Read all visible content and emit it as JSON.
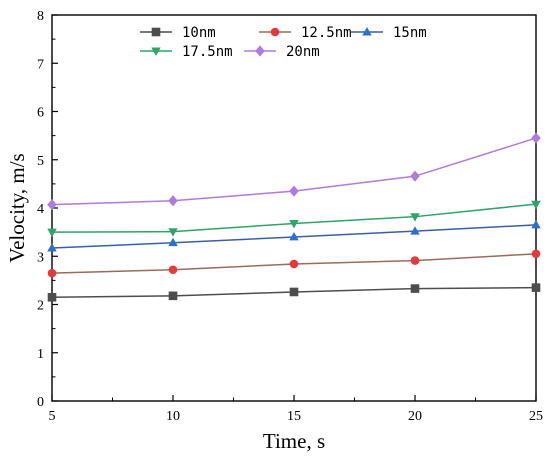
{
  "chart_data": {
    "type": "line",
    "title": "",
    "xlabel": "Time, s",
    "ylabel": "Velocity, m/s",
    "x": [
      5,
      10,
      15,
      20,
      25
    ],
    "xlim": [
      5,
      25
    ],
    "ylim": [
      0,
      8
    ],
    "xticks": [
      "5",
      "10",
      "15",
      "20",
      "25"
    ],
    "yticks": [
      "0",
      "1",
      "2",
      "3",
      "4",
      "5",
      "6",
      "7",
      "8"
    ],
    "grid": false,
    "legend_position": "top",
    "series": [
      {
        "name": "10nm",
        "marker": "square",
        "color": "#4d4d4d",
        "values": [
          2.15,
          2.18,
          2.26,
          2.33,
          2.35
        ]
      },
      {
        "name": "12.5nm",
        "marker": "circle",
        "color": "#e8393a",
        "line_color": "#9c6b5a",
        "values": [
          2.65,
          2.72,
          2.84,
          2.91,
          3.05
        ]
      },
      {
        "name": "15nm",
        "marker": "triangle-up",
        "color": "#2c6fd1",
        "line_color": "#3a5fa8",
        "values": [
          3.17,
          3.28,
          3.4,
          3.52,
          3.65
        ]
      },
      {
        "name": "17.5nm",
        "marker": "triangle-down",
        "color": "#2ea36a",
        "values": [
          3.5,
          3.51,
          3.68,
          3.82,
          4.08
        ]
      },
      {
        "name": "20nm",
        "marker": "diamond",
        "color": "#b07ae0",
        "values": [
          4.07,
          4.15,
          4.35,
          4.66,
          5.45
        ]
      }
    ]
  }
}
